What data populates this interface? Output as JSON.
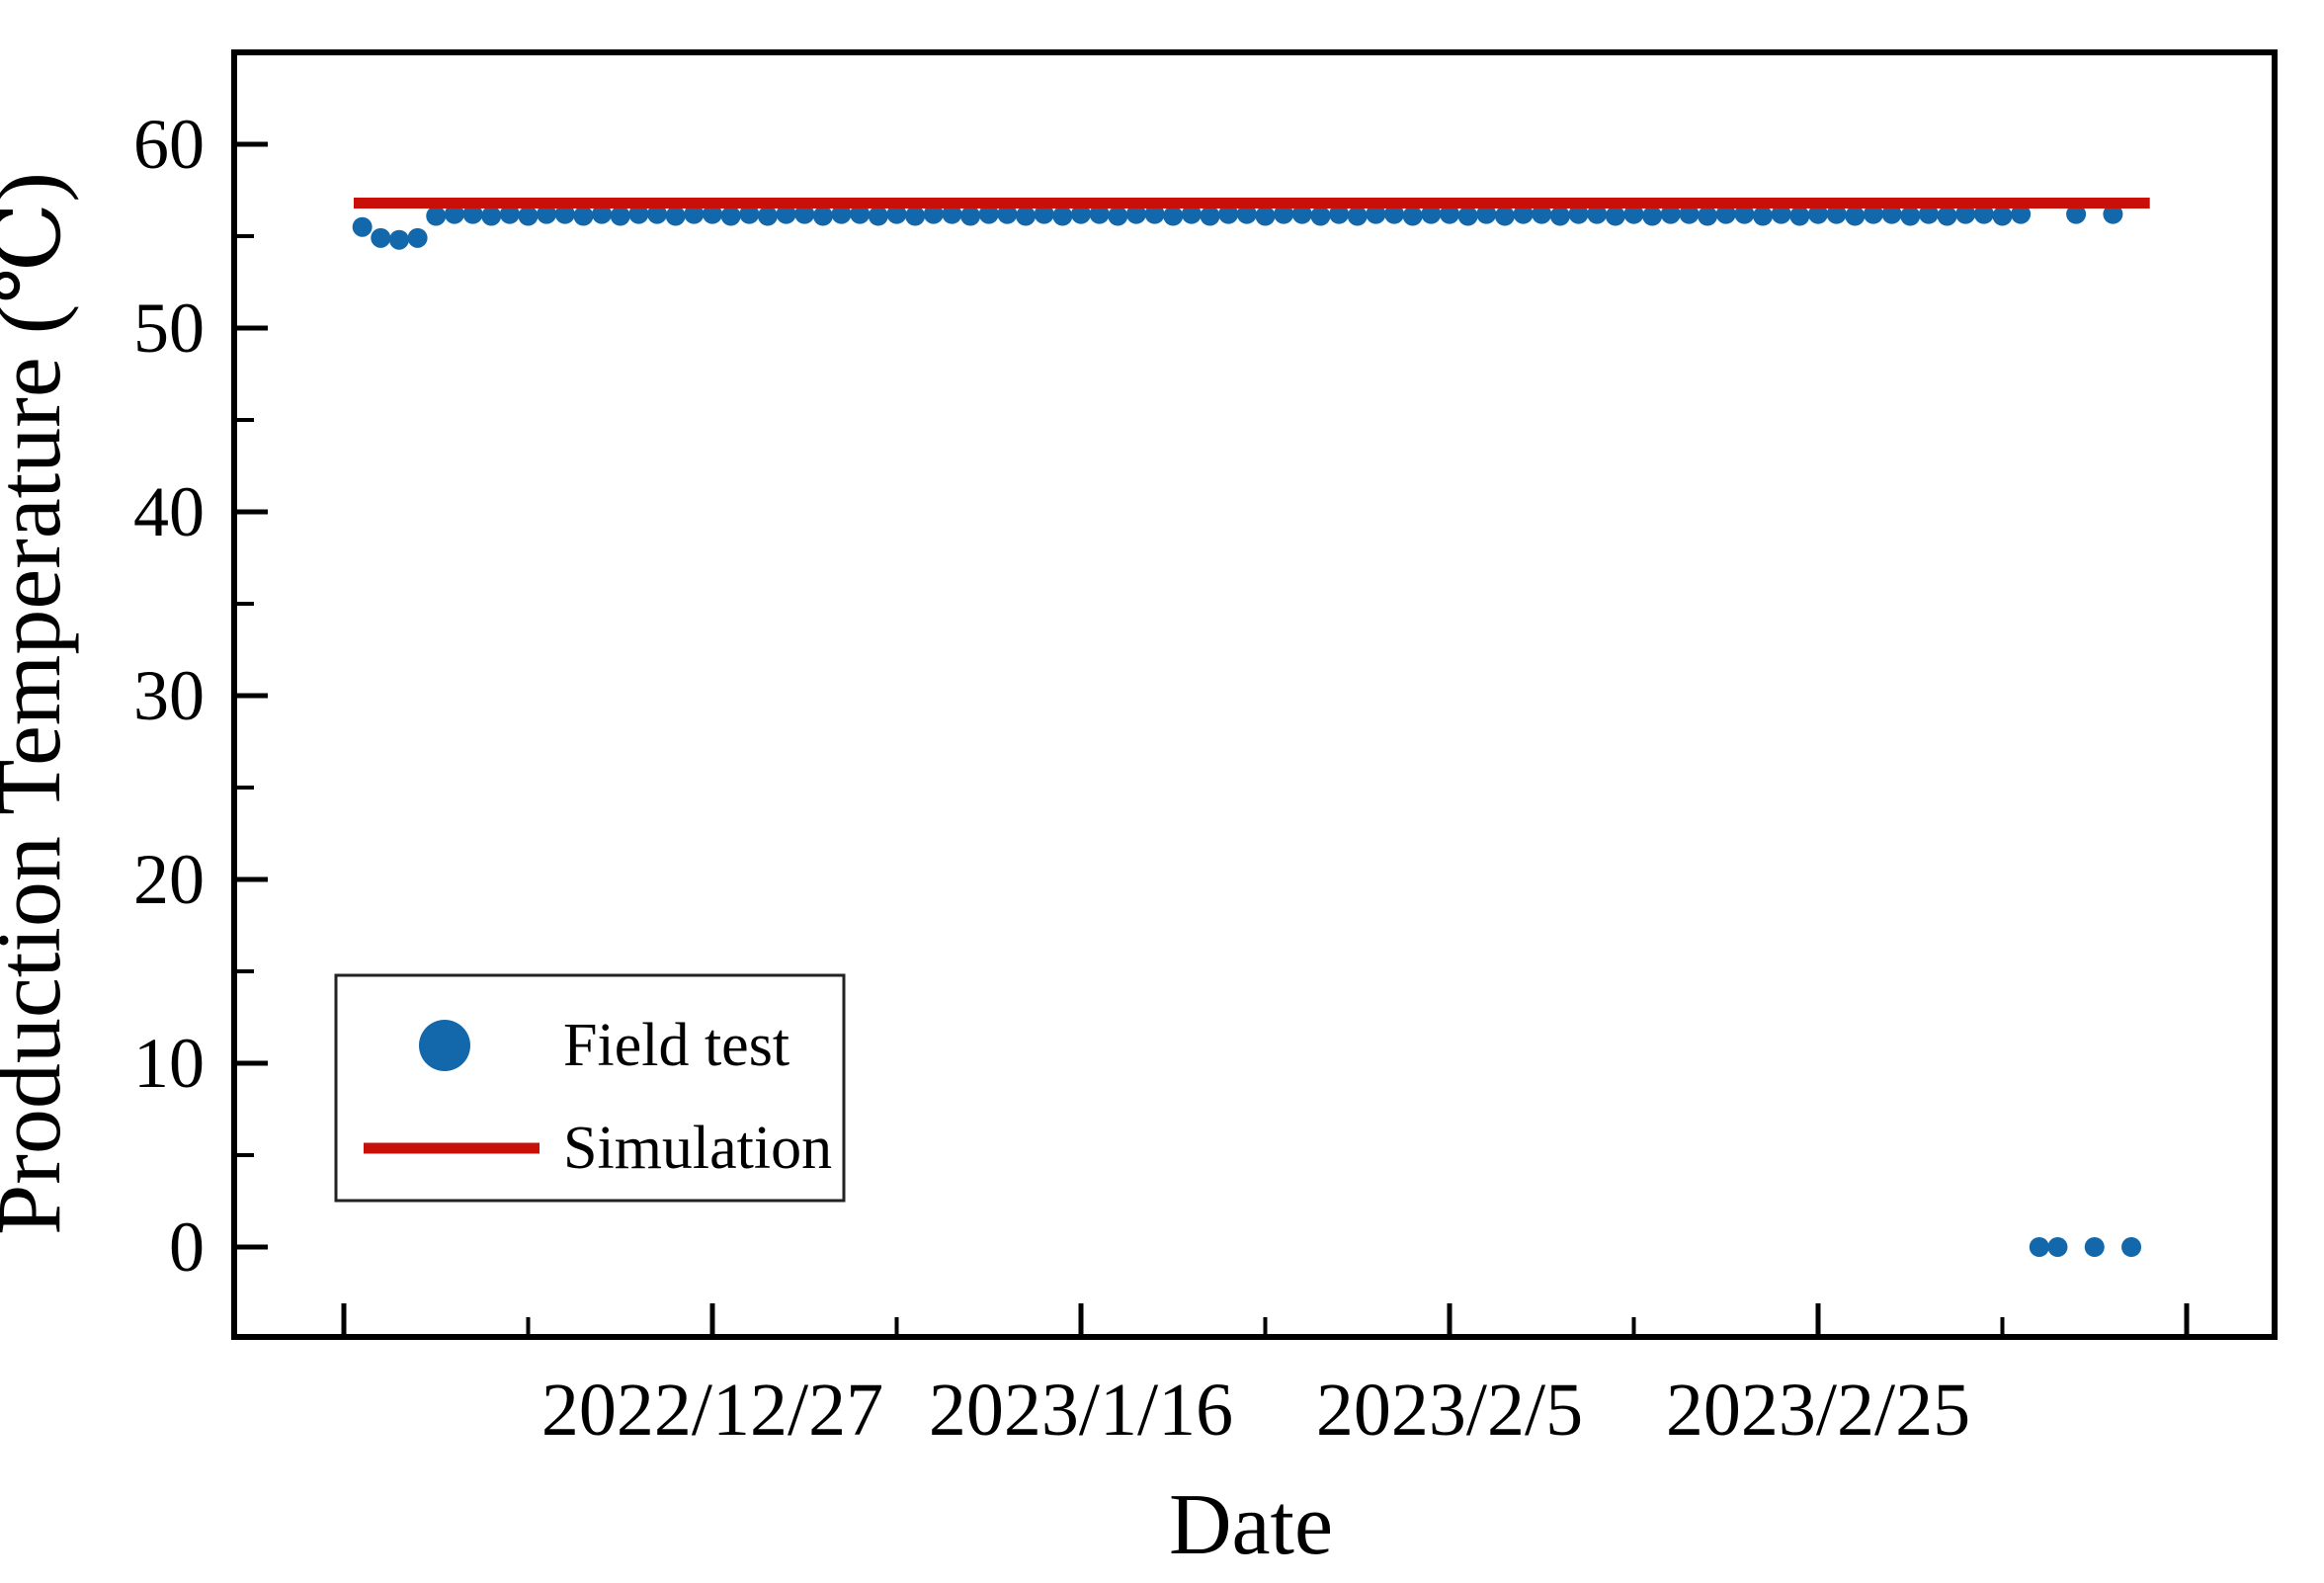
{
  "figure": {
    "background": "#ffffff",
    "axis_color": "#000000",
    "text_color": "#000000"
  },
  "chart_data": {
    "type": "scatter",
    "title": "",
    "xlabel": "Date",
    "ylabel": "Production Temperature (℃)",
    "legend_position": "lower-left",
    "grid": false,
    "x_axis": {
      "epoch": "2022/12/7",
      "xlim_dates": [
        "2022/12/1",
        "2023/3/21"
      ],
      "major_ticks": [
        {
          "date": "2022/12/7",
          "label": ""
        },
        {
          "date": "2022/12/27",
          "label": "2022/12/27"
        },
        {
          "date": "2023/1/16",
          "label": "2023/1/16"
        },
        {
          "date": "2023/2/5",
          "label": "2023/2/5"
        },
        {
          "date": "2023/2/25",
          "label": "2023/2/25"
        },
        {
          "date": "2023/3/17",
          "label": ""
        }
      ],
      "minor_ticks": [
        "2022/12/17",
        "2023/1/6",
        "2023/1/26",
        "2023/2/15",
        "2023/3/7"
      ]
    },
    "y_axis": {
      "ylim": [
        -4.9,
        65
      ],
      "major_ticks": [
        0,
        10,
        20,
        30,
        40,
        50,
        60
      ],
      "minor_ticks": [
        5,
        15,
        25,
        35,
        45,
        55
      ]
    },
    "series": [
      {
        "name": "Field test",
        "type": "scatter",
        "color": "#1268aa",
        "marker": "circle",
        "points": [
          {
            "date": "2022/12/8",
            "value": 55.5
          },
          {
            "date": "2022/12/9",
            "value": 54.9
          },
          {
            "date": "2022/12/10",
            "value": 54.8
          },
          {
            "date": "2022/12/11",
            "value": 54.9
          },
          {
            "date": "2022/12/12",
            "value": 56.1
          },
          {
            "date": "2022/12/13",
            "value": 56.2
          },
          {
            "date": "2022/12/14",
            "value": 56.2
          },
          {
            "date": "2022/12/15",
            "value": 56.1
          },
          {
            "date": "2022/12/16",
            "value": 56.2
          },
          {
            "date": "2022/12/17",
            "value": 56.1
          },
          {
            "date": "2022/12/18",
            "value": 56.2
          },
          {
            "date": "2022/12/19",
            "value": 56.2
          },
          {
            "date": "2022/12/20",
            "value": 56.1
          },
          {
            "date": "2022/12/21",
            "value": 56.2
          },
          {
            "date": "2022/12/22",
            "value": 56.1
          },
          {
            "date": "2022/12/23",
            "value": 56.2
          },
          {
            "date": "2022/12/24",
            "value": 56.2
          },
          {
            "date": "2022/12/25",
            "value": 56.1
          },
          {
            "date": "2022/12/26",
            "value": 56.2
          },
          {
            "date": "2022/12/27",
            "value": 56.2
          },
          {
            "date": "2022/12/28",
            "value": 56.1
          },
          {
            "date": "2022/12/29",
            "value": 56.2
          },
          {
            "date": "2022/12/30",
            "value": 56.1
          },
          {
            "date": "2022/12/31",
            "value": 56.2
          },
          {
            "date": "2023/1/1",
            "value": 56.2
          },
          {
            "date": "2023/1/2",
            "value": 56.1
          },
          {
            "date": "2023/1/3",
            "value": 56.2
          },
          {
            "date": "2023/1/4",
            "value": 56.2
          },
          {
            "date": "2023/1/5",
            "value": 56.1
          },
          {
            "date": "2023/1/6",
            "value": 56.2
          },
          {
            "date": "2023/1/7",
            "value": 56.1
          },
          {
            "date": "2023/1/8",
            "value": 56.2
          },
          {
            "date": "2023/1/9",
            "value": 56.2
          },
          {
            "date": "2023/1/10",
            "value": 56.1
          },
          {
            "date": "2023/1/11",
            "value": 56.2
          },
          {
            "date": "2023/1/12",
            "value": 56.2
          },
          {
            "date": "2023/1/13",
            "value": 56.1
          },
          {
            "date": "2023/1/14",
            "value": 56.2
          },
          {
            "date": "2023/1/15",
            "value": 56.1
          },
          {
            "date": "2023/1/16",
            "value": 56.2
          },
          {
            "date": "2023/1/17",
            "value": 56.2
          },
          {
            "date": "2023/1/18",
            "value": 56.1
          },
          {
            "date": "2023/1/19",
            "value": 56.2
          },
          {
            "date": "2023/1/20",
            "value": 56.2
          },
          {
            "date": "2023/1/21",
            "value": 56.1
          },
          {
            "date": "2023/1/22",
            "value": 56.2
          },
          {
            "date": "2023/1/23",
            "value": 56.1
          },
          {
            "date": "2023/1/24",
            "value": 56.2
          },
          {
            "date": "2023/1/25",
            "value": 56.2
          },
          {
            "date": "2023/1/26",
            "value": 56.1
          },
          {
            "date": "2023/1/27",
            "value": 56.2
          },
          {
            "date": "2023/1/28",
            "value": 56.2
          },
          {
            "date": "2023/1/29",
            "value": 56.1
          },
          {
            "date": "2023/1/30",
            "value": 56.2
          },
          {
            "date": "2023/1/31",
            "value": 56.1
          },
          {
            "date": "2023/2/1",
            "value": 56.2
          },
          {
            "date": "2023/2/2",
            "value": 56.2
          },
          {
            "date": "2023/2/3",
            "value": 56.1
          },
          {
            "date": "2023/2/4",
            "value": 56.2
          },
          {
            "date": "2023/2/5",
            "value": 56.2
          },
          {
            "date": "2023/2/6",
            "value": 56.1
          },
          {
            "date": "2023/2/7",
            "value": 56.2
          },
          {
            "date": "2023/2/8",
            "value": 56.1
          },
          {
            "date": "2023/2/9",
            "value": 56.2
          },
          {
            "date": "2023/2/10",
            "value": 56.2
          },
          {
            "date": "2023/2/11",
            "value": 56.1
          },
          {
            "date": "2023/2/12",
            "value": 56.2
          },
          {
            "date": "2023/2/13",
            "value": 56.2
          },
          {
            "date": "2023/2/14",
            "value": 56.1
          },
          {
            "date": "2023/2/15",
            "value": 56.2
          },
          {
            "date": "2023/2/16",
            "value": 56.1
          },
          {
            "date": "2023/2/17",
            "value": 56.2
          },
          {
            "date": "2023/2/18",
            "value": 56.2
          },
          {
            "date": "2023/2/19",
            "value": 56.1
          },
          {
            "date": "2023/2/20",
            "value": 56.2
          },
          {
            "date": "2023/2/21",
            "value": 56.2
          },
          {
            "date": "2023/2/22",
            "value": 56.1
          },
          {
            "date": "2023/2/23",
            "value": 56.2
          },
          {
            "date": "2023/2/24",
            "value": 56.1
          },
          {
            "date": "2023/2/25",
            "value": 56.2
          },
          {
            "date": "2023/2/26",
            "value": 56.2
          },
          {
            "date": "2023/2/27",
            "value": 56.1
          },
          {
            "date": "2023/2/28",
            "value": 56.2
          },
          {
            "date": "2023/3/1",
            "value": 56.2
          },
          {
            "date": "2023/3/2",
            "value": 56.1
          },
          {
            "date": "2023/3/3",
            "value": 56.2
          },
          {
            "date": "2023/3/4",
            "value": 56.1
          },
          {
            "date": "2023/3/5",
            "value": 56.2
          },
          {
            "date": "2023/3/6",
            "value": 56.2
          },
          {
            "date": "2023/3/7",
            "value": 56.1
          },
          {
            "date": "2023/3/8",
            "value": 56.2
          },
          {
            "date": "2023/3/9",
            "value": 0
          },
          {
            "date": "2023/3/10",
            "value": 0
          },
          {
            "date": "2023/3/11",
            "value": 56.2
          },
          {
            "date": "2023/3/12",
            "value": 0
          },
          {
            "date": "2023/3/13",
            "value": 56.2
          },
          {
            "date": "2023/3/14",
            "value": 0
          }
        ]
      },
      {
        "name": "Simulation",
        "type": "line",
        "color": "#c91008",
        "value": 56.8,
        "start_date": "2022/12/7",
        "end_date": "2023/3/15"
      }
    ],
    "legend": {
      "entries": [
        {
          "label": "Field test",
          "marker": "circle",
          "color": "#1268aa"
        },
        {
          "label": "Simulation",
          "marker": "line",
          "color": "#c91008"
        }
      ]
    }
  }
}
